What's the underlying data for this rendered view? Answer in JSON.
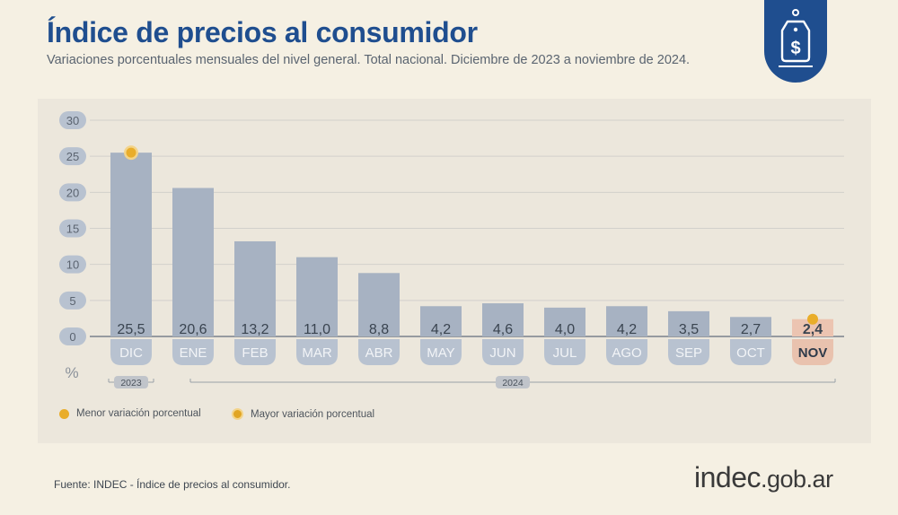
{
  "header": {
    "title": "Índice de precios al consumidor",
    "subtitle": "Variaciones porcentuales mensuales del nivel general. Total nacional. Diciembre de 2023 a noviembre de 2024."
  },
  "badge": {
    "icon": "price-tag-dollar-icon"
  },
  "chart_data": {
    "type": "bar",
    "title": "Índice de precios al consumidor",
    "categories": [
      "DIC",
      "ENE",
      "FEB",
      "MAR",
      "ABR",
      "MAY",
      "JUN",
      "JUL",
      "AGO",
      "SEP",
      "OCT",
      "NOV"
    ],
    "values": [
      25.5,
      20.6,
      13.2,
      11.0,
      8.8,
      4.2,
      4.6,
      4.0,
      4.2,
      3.5,
      2.7,
      2.4
    ],
    "value_labels": [
      "25,5",
      "20,6",
      "13,2",
      "11,0",
      "8,8",
      "4,2",
      "4,6",
      "4,0",
      "4,2",
      "3,5",
      "2,7",
      "2,4"
    ],
    "ylim": [
      0,
      30
    ],
    "yticks": [
      0,
      5,
      10,
      15,
      20,
      25,
      30
    ],
    "ylabel": "%",
    "grid": true,
    "year_groups": [
      {
        "label": "2023",
        "from": 0,
        "to": 0
      },
      {
        "label": "2024",
        "from": 1,
        "to": 11
      }
    ],
    "highlight": {
      "min_index": 11,
      "max_index": 0
    },
    "colors": {
      "bar": "#a7b2c2",
      "bar_highlight": "#ecc4b1",
      "label_pill": "#b8c2d0",
      "label_pill_highlight": "#e9c2ae",
      "marker": "#e9ad2a",
      "title": "#1f4e8f"
    }
  },
  "legend": {
    "min_label": "Menor variación porcentual",
    "max_label": "Mayor variación porcentual"
  },
  "footer": {
    "source": "Fuente: INDEC - Índice de precios al consumidor.",
    "logo_main": "indec",
    "logo_domain": ".gob.ar"
  }
}
